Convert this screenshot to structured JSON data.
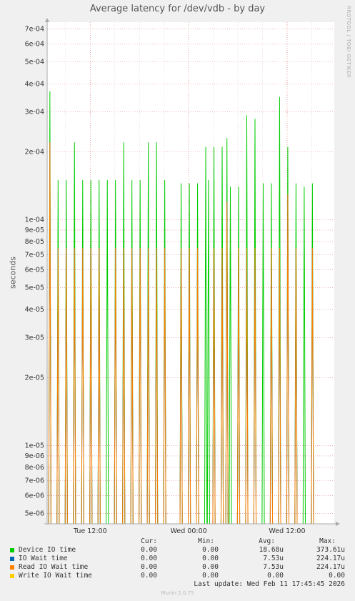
{
  "chart_data": {
    "type": "line",
    "title": "Average latency for /dev/vdb - by day",
    "ylabel": "seconds",
    "yscale": "log",
    "ylim": [
      4.5e-06,
      0.00075
    ],
    "y_ticks": [
      {
        "v": 0.0007,
        "label": "7e-04"
      },
      {
        "v": 0.0006,
        "label": "6e-04"
      },
      {
        "v": 0.0005,
        "label": "5e-04"
      },
      {
        "v": 0.0004,
        "label": "4e-04"
      },
      {
        "v": 0.0003,
        "label": "3e-04"
      },
      {
        "v": 0.0002,
        "label": "2e-04"
      },
      {
        "v": 0.0001,
        "label": "1e-04"
      },
      {
        "v": 9e-05,
        "label": "9e-05"
      },
      {
        "v": 8e-05,
        "label": "8e-05"
      },
      {
        "v": 7e-05,
        "label": "7e-05"
      },
      {
        "v": 6e-05,
        "label": "6e-05"
      },
      {
        "v": 5e-05,
        "label": "5e-05"
      },
      {
        "v": 4e-05,
        "label": "4e-05"
      },
      {
        "v": 3e-05,
        "label": "3e-05"
      },
      {
        "v": 2e-05,
        "label": "2e-05"
      },
      {
        "v": 1e-05,
        "label": "1e-05"
      },
      {
        "v": 9e-06,
        "label": "9e-06"
      },
      {
        "v": 8e-06,
        "label": "8e-06"
      },
      {
        "v": 7e-06,
        "label": "7e-06"
      },
      {
        "v": 6e-06,
        "label": "6e-06"
      },
      {
        "v": 5e-06,
        "label": "5e-06"
      }
    ],
    "xlim": [
      "2026-02-10 06:45",
      "2026-02-11 17:45"
    ],
    "x_ticks": [
      {
        "t": "2026-02-10 12:00",
        "label": "Tue 12:00"
      },
      {
        "t": "2026-02-11 00:00",
        "label": "Wed 00:00"
      },
      {
        "t": "2026-02-11 12:00",
        "label": "Wed 12:00"
      }
    ],
    "grid": true,
    "series": [
      {
        "name": "Device IO time",
        "color": "#00cc00",
        "points": [
          [
            "2026-02-10 07:05",
            0.00037
          ],
          [
            "2026-02-10 08:05",
            0.00015
          ],
          [
            "2026-02-10 09:05",
            0.00015
          ],
          [
            "2026-02-10 10:05",
            0.00022
          ],
          [
            "2026-02-10 11:05",
            0.00015
          ],
          [
            "2026-02-10 12:05",
            0.00015
          ],
          [
            "2026-02-10 13:05",
            0.00015
          ],
          [
            "2026-02-10 14:05",
            0.00015
          ],
          [
            "2026-02-10 15:05",
            0.00015
          ],
          [
            "2026-02-10 16:05",
            0.00022
          ],
          [
            "2026-02-10 17:05",
            0.00015
          ],
          [
            "2026-02-10 18:05",
            0.00015
          ],
          [
            "2026-02-10 19:05",
            0.00022
          ],
          [
            "2026-02-10 20:05",
            0.00022
          ],
          [
            "2026-02-10 21:05",
            0.00015
          ],
          [
            "2026-02-10 23:05",
            0.000145
          ],
          [
            "2026-02-11 00:05",
            0.000145
          ],
          [
            "2026-02-11 01:05",
            0.000145
          ],
          [
            "2026-02-11 02:05",
            0.00021
          ],
          [
            "2026-02-11 02:25",
            0.00015
          ],
          [
            "2026-02-11 03:05",
            0.00021
          ],
          [
            "2026-02-11 04:05",
            0.00021
          ],
          [
            "2026-02-11 04:40",
            0.00023
          ],
          [
            "2026-02-11 05:05",
            0.00014
          ],
          [
            "2026-02-11 06:05",
            0.00014
          ],
          [
            "2026-02-11 07:05",
            0.00029
          ],
          [
            "2026-02-11 08:05",
            0.00028
          ],
          [
            "2026-02-11 09:05",
            0.000145
          ],
          [
            "2026-02-11 10:05",
            0.000145
          ],
          [
            "2026-02-11 11:05",
            0.00035
          ],
          [
            "2026-02-11 12:05",
            0.00021
          ],
          [
            "2026-02-11 13:05",
            0.000145
          ],
          [
            "2026-02-11 14:05",
            0.00014
          ],
          [
            "2026-02-11 15:05",
            0.000145
          ]
        ]
      },
      {
        "name": "IO Wait time",
        "color": "#0066b3",
        "points": [
          [
            "2026-02-10 07:05",
            0.00022
          ],
          [
            "2026-02-10 08:05",
            7.5e-05
          ],
          [
            "2026-02-10 09:05",
            7.5e-05
          ],
          [
            "2026-02-10 10:05",
            7.5e-05
          ],
          [
            "2026-02-10 11:05",
            7.5e-05
          ],
          [
            "2026-02-10 12:05",
            7.5e-05
          ],
          [
            "2026-02-10 13:05",
            7.5e-05
          ],
          [
            "2026-02-10 15:05",
            7.5e-05
          ],
          [
            "2026-02-10 16:05",
            7.5e-05
          ],
          [
            "2026-02-10 17:05",
            7.5e-05
          ],
          [
            "2026-02-10 18:05",
            7.5e-05
          ],
          [
            "2026-02-10 19:05",
            7.5e-05
          ],
          [
            "2026-02-10 20:05",
            7.5e-05
          ],
          [
            "2026-02-10 21:05",
            7.5e-05
          ],
          [
            "2026-02-10 23:05",
            7.5e-05
          ],
          [
            "2026-02-11 00:05",
            7.5e-05
          ],
          [
            "2026-02-11 01:05",
            7.5e-05
          ],
          [
            "2026-02-11 03:05",
            7.5e-05
          ],
          [
            "2026-02-11 04:05",
            7.5e-05
          ],
          [
            "2026-02-11 04:40",
            0.00012
          ],
          [
            "2026-02-11 06:05",
            7.5e-05
          ],
          [
            "2026-02-11 07:05",
            7.5e-05
          ],
          [
            "2026-02-11 08:05",
            7.5e-05
          ],
          [
            "2026-02-11 10:05",
            7.5e-05
          ],
          [
            "2026-02-11 11:05",
            7.5e-05
          ],
          [
            "2026-02-11 12:05",
            0.00013
          ],
          [
            "2026-02-11 13:05",
            7.5e-05
          ],
          [
            "2026-02-11 15:05",
            7.5e-05
          ]
        ]
      },
      {
        "name": "Read IO Wait time",
        "color": "#ff8000",
        "points": [
          [
            "2026-02-10 07:05",
            0.00022
          ],
          [
            "2026-02-10 08:05",
            7.5e-05
          ],
          [
            "2026-02-10 09:05",
            7.5e-05
          ],
          [
            "2026-02-10 10:05",
            7.5e-05
          ],
          [
            "2026-02-10 11:05",
            7.5e-05
          ],
          [
            "2026-02-10 12:05",
            7.5e-05
          ],
          [
            "2026-02-10 13:05",
            7.5e-05
          ],
          [
            "2026-02-10 15:05",
            7.5e-05
          ],
          [
            "2026-02-10 16:05",
            7.5e-05
          ],
          [
            "2026-02-10 17:05",
            7.5e-05
          ],
          [
            "2026-02-10 18:05",
            7.5e-05
          ],
          [
            "2026-02-10 19:05",
            7.5e-05
          ],
          [
            "2026-02-10 20:05",
            7.5e-05
          ],
          [
            "2026-02-10 21:05",
            7.5e-05
          ],
          [
            "2026-02-10 23:05",
            7.5e-05
          ],
          [
            "2026-02-11 00:05",
            7.5e-05
          ],
          [
            "2026-02-11 01:05",
            7.5e-05
          ],
          [
            "2026-02-11 03:05",
            7.5e-05
          ],
          [
            "2026-02-11 04:05",
            7.5e-05
          ],
          [
            "2026-02-11 04:40",
            0.00012
          ],
          [
            "2026-02-11 06:05",
            7.5e-05
          ],
          [
            "2026-02-11 07:05",
            7.5e-05
          ],
          [
            "2026-02-11 08:05",
            7.5e-05
          ],
          [
            "2026-02-11 10:05",
            7.5e-05
          ],
          [
            "2026-02-11 11:05",
            7.5e-05
          ],
          [
            "2026-02-11 12:05",
            0.00013
          ],
          [
            "2026-02-11 13:05",
            7.5e-05
          ],
          [
            "2026-02-11 15:05",
            7.5e-05
          ]
        ]
      },
      {
        "name": "Write IO Wait time",
        "color": "#ffcc00",
        "points": []
      }
    ]
  },
  "side_label": "RRDTOOL / TOBI OETIKER",
  "legend": {
    "headers": {
      "cur": "Cur:",
      "min": "Min:",
      "avg": "Avg:",
      "max": "Max:"
    },
    "rows": [
      {
        "name": "Device IO time",
        "color": "#00cc00",
        "cur": "0.00",
        "min": "0.00",
        "avg": "18.68u",
        "max": "373.61u"
      },
      {
        "name": "IO Wait time",
        "color": "#0066b3",
        "cur": "0.00",
        "min": "0.00",
        "avg": "7.53u",
        "max": "224.17u"
      },
      {
        "name": "Read IO Wait time",
        "color": "#ff8000",
        "cur": "0.00",
        "min": "0.00",
        "avg": "7.53u",
        "max": "224.17u"
      },
      {
        "name": "Write IO Wait time",
        "color": "#ffcc00",
        "cur": "0.00",
        "min": "0.00",
        "avg": "0.00",
        "max": "0.00"
      }
    ]
  },
  "last_update": "Last update: Wed Feb 11 17:45:45 2026",
  "footer": "Munin 2.0.75"
}
